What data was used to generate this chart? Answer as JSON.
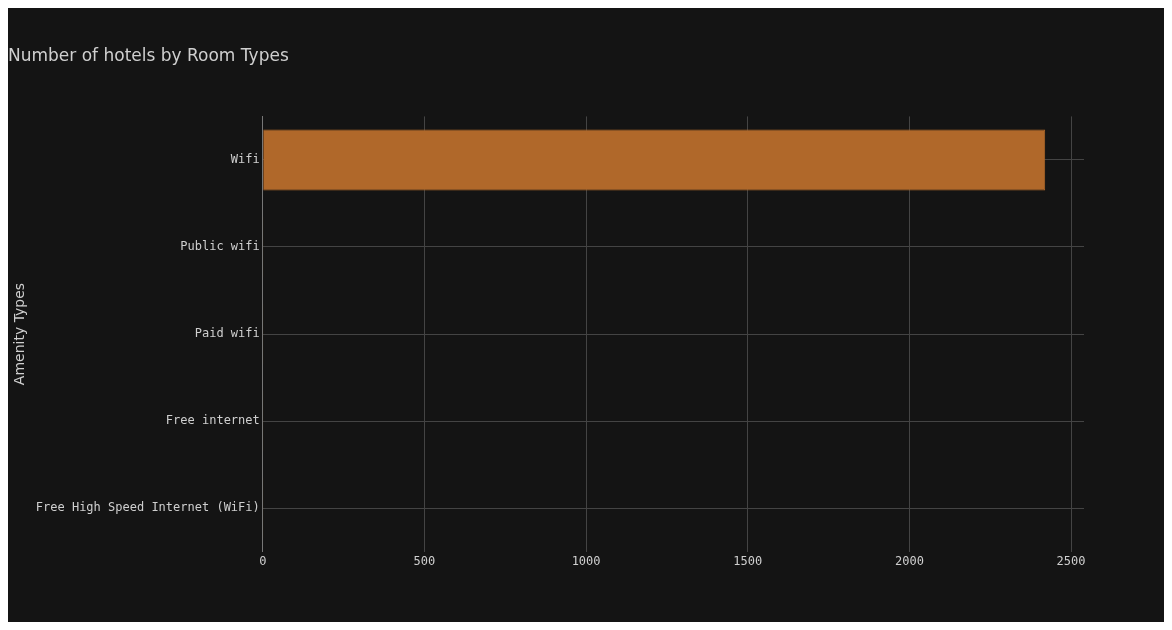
{
  "chart_data": {
    "type": "bar",
    "orientation": "horizontal",
    "title": "Number of hotels by Room Types",
    "ylabel": "Amenity Types",
    "categories": [
      "Wifi",
      "Public wifi",
      "Paid wifi",
      "Free internet",
      "Free High Speed Internet (WiFi)"
    ],
    "values": [
      2420,
      1,
      1,
      1,
      1
    ],
    "color": "#b0682a",
    "xlim": [
      0,
      2540
    ],
    "xticks": [
      0,
      500,
      1000,
      1500,
      2000,
      2500
    ],
    "grid": true
  }
}
